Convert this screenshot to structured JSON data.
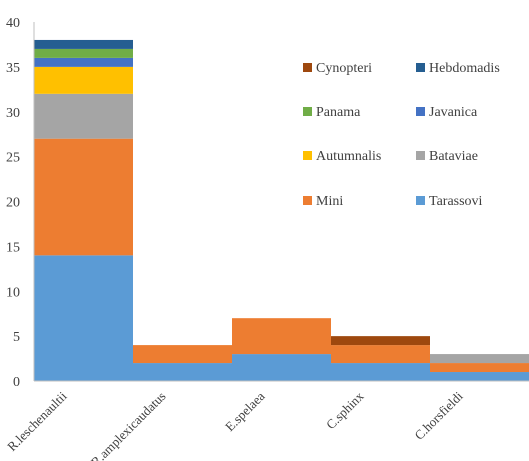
{
  "chart_data": {
    "type": "bar",
    "stacked": true,
    "categories": [
      "R.leschenaultii",
      "R.amplexicaudatus",
      "E.spelaea",
      "C.sphinx",
      "C.horsfieldi"
    ],
    "series": [
      {
        "name": "Tarassovi",
        "color": "#5b9bd5",
        "values": [
          14,
          2,
          3,
          2,
          1
        ]
      },
      {
        "name": "Mini",
        "color": "#ed7d31",
        "values": [
          13,
          2,
          4,
          2,
          1
        ]
      },
      {
        "name": "Bataviae",
        "color": "#a5a5a5",
        "values": [
          5,
          0,
          0,
          0,
          1
        ]
      },
      {
        "name": "Autumnalis",
        "color": "#ffc000",
        "values": [
          3,
          0,
          0,
          0,
          0
        ]
      },
      {
        "name": "Javanica",
        "color": "#4472c4",
        "values": [
          1,
          0,
          0,
          0,
          0
        ]
      },
      {
        "name": "Panama",
        "color": "#70ad47",
        "values": [
          1,
          0,
          0,
          0,
          0
        ]
      },
      {
        "name": "Hebdomadis",
        "color": "#255e91",
        "values": [
          1,
          0,
          0,
          0,
          0
        ]
      },
      {
        "name": "Cynopteri",
        "color": "#9e480e",
        "values": [
          0,
          0,
          0,
          1,
          0
        ]
      }
    ],
    "legend_order": [
      "Cynopteri",
      "Hebdomadis",
      "Panama",
      "Javanica",
      "Autumnalis",
      "Bataviae",
      "Mini",
      "Tarassovi"
    ],
    "yticks": [
      0,
      5,
      10,
      15,
      20,
      25,
      30,
      35,
      40
    ],
    "ylim": [
      0,
      40
    ],
    "grid": false,
    "legend_position": "right",
    "title": "",
    "xlabel": "",
    "ylabel": ""
  }
}
